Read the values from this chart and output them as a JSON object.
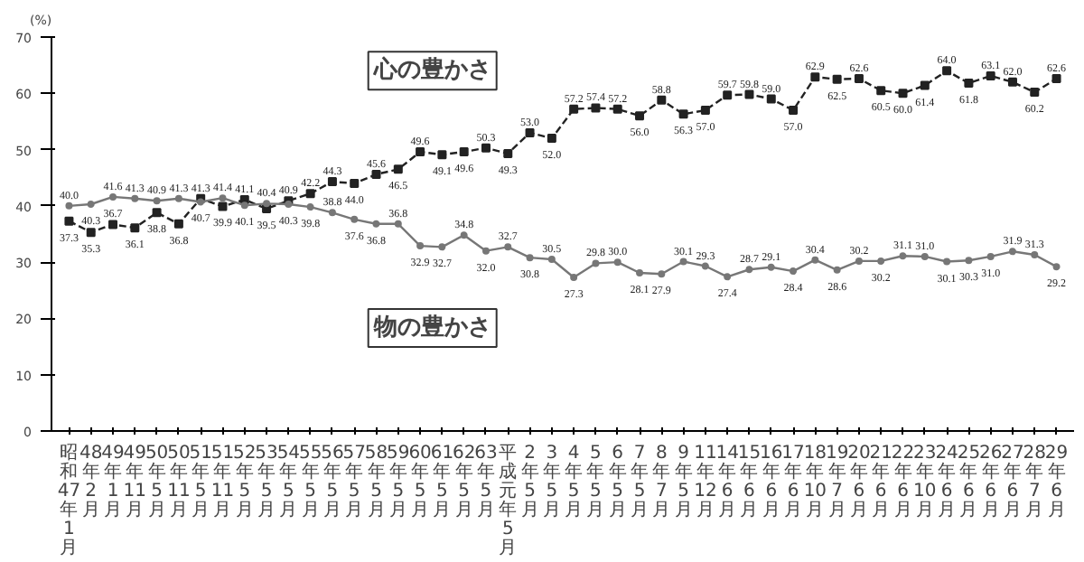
{
  "chart_data": {
    "type": "line",
    "ylabel": "(%)",
    "categories": [
      "昭和47年1月",
      "48年2月",
      "49年1月",
      "49年11月",
      "50年5月",
      "50年11月",
      "51年5月",
      "51年11月",
      "52年5月",
      "53年5月",
      "54年5月",
      "55年5月",
      "56年5月",
      "57年5月",
      "58年5月",
      "59年5月",
      "60年5月",
      "61年5月",
      "62年5月",
      "63年5月",
      "平成元年5月",
      "2年5月",
      "3年5月",
      "4年5月",
      "5年5月",
      "6年5月",
      "7年5月",
      "8年7月",
      "9年5月",
      "11年12月",
      "14年6月",
      "15年6月",
      "16年6月",
      "17年6月",
      "18年10月",
      "19年7月",
      "20年6月",
      "21年6月",
      "22年6月",
      "23年10月",
      "24年6月",
      "25年6月",
      "26年6月",
      "27年6月",
      "28年7月",
      "29年6月"
    ],
    "series": [
      {
        "name": "心の豊かさ",
        "color": "#222222",
        "line_style": "dashed",
        "marker": "square",
        "value_labels": [
          "37.3",
          "35.3",
          "36.7",
          "36.1",
          "38.8",
          "36.8",
          "41.3",
          "39.9",
          "41.1",
          "39.5",
          "40.9",
          "42.2",
          "44.3",
          "44.0",
          "45.6",
          "46.5",
          "49.6",
          "49.1",
          "49.6",
          "50.3",
          "49.3",
          "53.0",
          "52.0",
          "57.2",
          "57.4",
          "57.2",
          "56.0",
          "58.8",
          "56.3",
          "57.0",
          "59.7",
          "59.8",
          "59.0",
          "57.0",
          "62.9",
          "62.5",
          "62.6",
          "60.5",
          "60.0",
          "61.4",
          "64.0",
          "61.8",
          "63.1",
          "62.0",
          "60.2",
          "62.6"
        ],
        "values": [
          37.3,
          35.3,
          36.7,
          36.1,
          38.8,
          36.8,
          41.3,
          39.9,
          41.1,
          39.5,
          40.9,
          42.2,
          44.3,
          44.0,
          45.6,
          46.5,
          49.6,
          49.1,
          49.6,
          50.3,
          49.3,
          53.0,
          52.0,
          57.2,
          57.4,
          57.2,
          56.0,
          58.8,
          56.3,
          57.0,
          59.7,
          59.8,
          59.0,
          57.0,
          62.9,
          62.5,
          62.6,
          60.5,
          60.0,
          61.4,
          64.0,
          61.8,
          63.1,
          62.0,
          60.2,
          62.6
        ]
      },
      {
        "name": "物の豊かさ",
        "color": "#777777",
        "line_style": "solid",
        "marker": "circle",
        "value_labels": [
          "40.0",
          "40.3",
          "41.6",
          "41.3",
          "40.9",
          "41.3",
          "40.7",
          "41.4",
          "40.1",
          "40.4",
          "40.3",
          "39.8",
          "38.8",
          "37.6",
          "36.8",
          "36.8",
          "32.9",
          "32.7",
          "34.8",
          "32.0",
          "32.7",
          "30.8",
          "30.5",
          "27.3",
          "29.8",
          "30.0",
          "28.1",
          "27.9",
          "30.1",
          "29.3",
          "27.4",
          "28.7",
          "29.1",
          "28.4",
          "30.4",
          "28.6",
          "30.2",
          "30.2",
          "31.1",
          "31.0",
          "30.1",
          "30.3",
          "31.0",
          "31.9",
          "31.3",
          "29.2"
        ],
        "values": [
          40.0,
          40.3,
          41.6,
          41.3,
          40.9,
          41.3,
          40.7,
          41.4,
          40.1,
          40.4,
          40.3,
          39.8,
          38.8,
          37.6,
          36.8,
          36.8,
          32.9,
          32.7,
          34.8,
          32.0,
          32.7,
          30.8,
          30.5,
          27.3,
          29.8,
          30.0,
          28.1,
          27.9,
          30.1,
          29.3,
          27.4,
          28.7,
          29.1,
          28.4,
          30.4,
          28.6,
          30.2,
          30.2,
          31.1,
          31.0,
          30.1,
          30.3,
          31.0,
          31.9,
          31.3,
          29.2
        ]
      }
    ],
    "ylim": [
      0,
      70
    ],
    "yticks": [
      0,
      10,
      20,
      30,
      40,
      50,
      60,
      70
    ]
  }
}
